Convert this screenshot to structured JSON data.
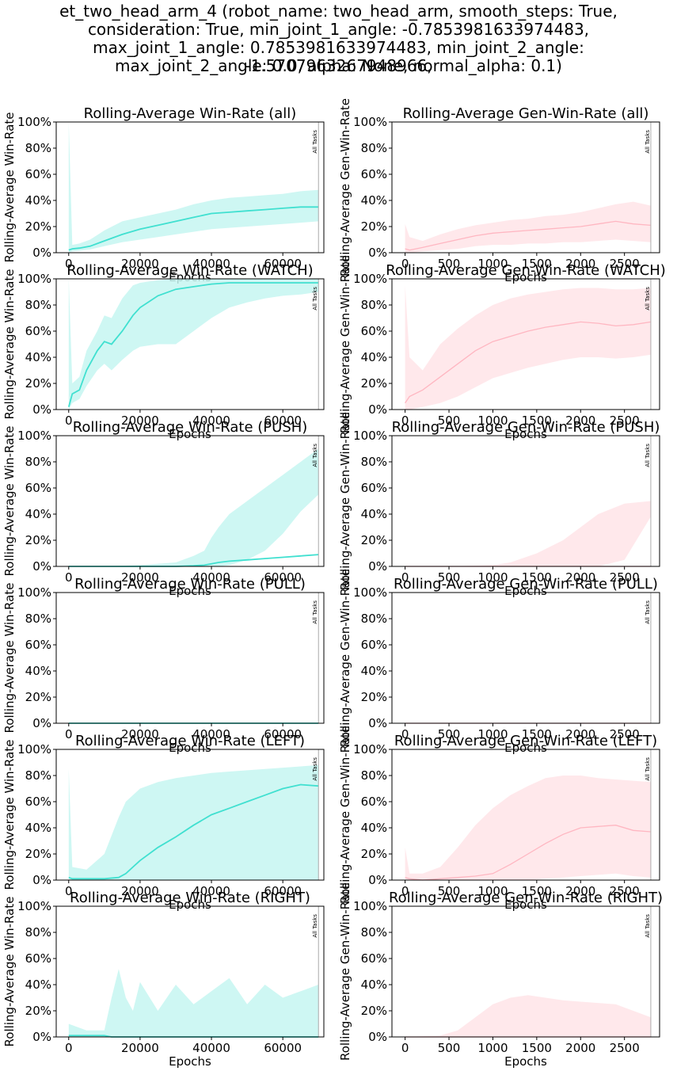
{
  "figure": {
    "suptitle_lines": [
      "et_two_head_arm_4 (robot_name: two_head_arm, smooth_steps: True,",
      "consideration: True, min_joint_1_angle: -0.7853981633974483,",
      "max_joint_1_angle: 0.7853981633974483, min_joint_2_angle: -1.5707963267948966,",
      "max_joint_2_angle: 0.0, alpha: None, normal_alpha: 0.1)"
    ],
    "colors": {
      "win": "#40e0d0",
      "win_band": "#c6f6f1",
      "gen": "#ffb6c1",
      "gen_band": "#ffe4e8",
      "marker": "#aaaaaa"
    }
  },
  "chart_data": [
    {
      "type": "line",
      "title": "Rolling-Average Win-Rate (all)",
      "xlabel": "Epochs",
      "ylabel": "Rolling-Average Win-Rate",
      "xlim": [
        -3500,
        71500
      ],
      "ylim": [
        0,
        1
      ],
      "xticks": [
        0,
        20000,
        40000,
        60000
      ],
      "yticks": [
        0,
        0.2,
        0.4,
        0.6,
        0.8,
        1.0
      ],
      "marker": {
        "x": 70000,
        "label": "All Tasks"
      },
      "color": "win",
      "x": [
        0,
        1000,
        3000,
        6000,
        10000,
        15000,
        20000,
        25000,
        30000,
        35000,
        40000,
        45000,
        50000,
        55000,
        60000,
        65000,
        70000
      ],
      "mean": [
        0.02,
        0.03,
        0.035,
        0.05,
        0.09,
        0.14,
        0.18,
        0.21,
        0.24,
        0.27,
        0.3,
        0.31,
        0.32,
        0.33,
        0.34,
        0.35,
        0.35
      ],
      "low": [
        0,
        0.01,
        0.015,
        0.025,
        0.05,
        0.08,
        0.1,
        0.12,
        0.14,
        0.16,
        0.18,
        0.19,
        0.2,
        0.21,
        0.22,
        0.23,
        0.24
      ],
      "high": [
        1.0,
        0.06,
        0.07,
        0.1,
        0.17,
        0.24,
        0.27,
        0.3,
        0.33,
        0.37,
        0.4,
        0.42,
        0.43,
        0.44,
        0.45,
        0.47,
        0.48
      ]
    },
    {
      "type": "line",
      "title": "Rolling-Average Gen-Win-Rate (all)",
      "xlabel": "Epochs",
      "ylabel": "Rolling-Average Gen-Win-Rate",
      "xlim": [
        -150,
        2900
      ],
      "ylim": [
        0,
        1
      ],
      "xticks": [
        0,
        500,
        1000,
        1500,
        2000,
        2500
      ],
      "yticks": [
        0,
        0.2,
        0.4,
        0.6,
        0.8,
        1.0
      ],
      "marker": {
        "x": 2800,
        "label": "All Tasks"
      },
      "color": "gen",
      "x": [
        0,
        50,
        200,
        400,
        600,
        800,
        1000,
        1200,
        1400,
        1600,
        1800,
        2000,
        2200,
        2400,
        2600,
        2800
      ],
      "mean": [
        0.03,
        0.02,
        0.04,
        0.07,
        0.1,
        0.13,
        0.15,
        0.16,
        0.17,
        0.18,
        0.19,
        0.2,
        0.22,
        0.24,
        0.22,
        0.21
      ],
      "low": [
        0,
        0,
        0.01,
        0.02,
        0.03,
        0.05,
        0.06,
        0.06,
        0.07,
        0.07,
        0.08,
        0.08,
        0.09,
        0.1,
        0.09,
        0.08
      ],
      "high": [
        0.22,
        0.12,
        0.09,
        0.14,
        0.18,
        0.21,
        0.23,
        0.25,
        0.26,
        0.28,
        0.29,
        0.31,
        0.34,
        0.37,
        0.39,
        0.36
      ]
    },
    {
      "type": "line",
      "title": "Rolling-Average Win-Rate (WATCH)",
      "xlabel": "Epochs",
      "ylabel": "Rolling-Average Win-Rate",
      "xlim": [
        -3500,
        71500
      ],
      "ylim": [
        0,
        1
      ],
      "xticks": [
        0,
        20000,
        40000,
        60000
      ],
      "yticks": [
        0,
        0.2,
        0.4,
        0.6,
        0.8,
        1.0
      ],
      "marker": {
        "x": 70000,
        "label": "All Tasks"
      },
      "color": "win",
      "x": [
        0,
        1000,
        3000,
        5000,
        8000,
        10000,
        12000,
        15000,
        18000,
        20000,
        25000,
        30000,
        35000,
        40000,
        45000,
        50000,
        55000,
        60000,
        65000,
        70000
      ],
      "mean": [
        0.02,
        0.12,
        0.15,
        0.3,
        0.45,
        0.52,
        0.5,
        0.6,
        0.72,
        0.78,
        0.87,
        0.92,
        0.94,
        0.96,
        0.97,
        0.97,
        0.97,
        0.97,
        0.97,
        0.97
      ],
      "low": [
        0,
        0.05,
        0.08,
        0.18,
        0.3,
        0.35,
        0.3,
        0.38,
        0.45,
        0.48,
        0.5,
        0.5,
        0.6,
        0.7,
        0.78,
        0.82,
        0.85,
        0.87,
        0.88,
        0.9
      ],
      "high": [
        1.0,
        0.2,
        0.25,
        0.45,
        0.6,
        0.72,
        0.7,
        0.85,
        0.95,
        0.97,
        0.99,
        1.0,
        1.0,
        1.0,
        1.0,
        1.0,
        1.0,
        1.0,
        1.0,
        1.0
      ]
    },
    {
      "type": "line",
      "title": "Rolling-Average Gen-Win-Rate (WATCH)",
      "xlabel": "Epochs",
      "ylabel": "Rolling-Average Gen-Win-Rate",
      "xlim": [
        -150,
        2900
      ],
      "ylim": [
        0,
        1
      ],
      "xticks": [
        0,
        500,
        1000,
        1500,
        2000,
        2500
      ],
      "yticks": [
        0,
        0.2,
        0.4,
        0.6,
        0.8,
        1.0
      ],
      "marker": {
        "x": 2800,
        "label": "All Tasks"
      },
      "color": "gen",
      "x": [
        0,
        50,
        200,
        400,
        600,
        800,
        1000,
        1200,
        1400,
        1600,
        1800,
        2000,
        2200,
        2400,
        2600,
        2800
      ],
      "mean": [
        0.05,
        0.1,
        0.15,
        0.25,
        0.35,
        0.45,
        0.52,
        0.56,
        0.6,
        0.63,
        0.65,
        0.67,
        0.66,
        0.64,
        0.65,
        0.67
      ],
      "low": [
        0,
        0,
        0.02,
        0.05,
        0.1,
        0.17,
        0.24,
        0.28,
        0.32,
        0.35,
        0.38,
        0.4,
        0.4,
        0.39,
        0.4,
        0.42
      ],
      "high": [
        0.95,
        0.4,
        0.3,
        0.5,
        0.62,
        0.72,
        0.8,
        0.85,
        0.88,
        0.9,
        0.92,
        0.93,
        0.93,
        0.92,
        0.92,
        0.93
      ]
    },
    {
      "type": "line",
      "title": "Rolling-Average Win-Rate (PUSH)",
      "xlabel": "Epochs",
      "ylabel": "Rolling-Average Win-Rate",
      "xlim": [
        -3500,
        71500
      ],
      "ylim": [
        0,
        1
      ],
      "xticks": [
        0,
        20000,
        40000,
        60000
      ],
      "yticks": [
        0,
        0.2,
        0.4,
        0.6,
        0.8,
        1.0
      ],
      "marker": {
        "x": 70000,
        "label": "All Tasks"
      },
      "color": "win",
      "x": [
        0,
        10000,
        20000,
        30000,
        35000,
        38000,
        40000,
        42000,
        45000,
        50000,
        55000,
        60000,
        65000,
        70000
      ],
      "mean": [
        0,
        0,
        0,
        0,
        0.005,
        0.01,
        0.02,
        0.03,
        0.04,
        0.05,
        0.06,
        0.07,
        0.08,
        0.09
      ],
      "low": [
        0,
        0,
        0,
        0,
        0,
        0,
        0,
        0,
        0.01,
        0.05,
        0.12,
        0.25,
        0.42,
        0.55
      ],
      "high": [
        0,
        0,
        0.01,
        0.03,
        0.08,
        0.12,
        0.22,
        0.3,
        0.4,
        0.5,
        0.6,
        0.7,
        0.8,
        0.9
      ]
    },
    {
      "type": "line",
      "title": "Rolling-Average Gen-Win-Rate (PUSH)",
      "xlabel": "Epochs",
      "ylabel": "Rolling-Average Gen-Win-Rate",
      "xlim": [
        -150,
        2900
      ],
      "ylim": [
        0,
        1
      ],
      "xticks": [
        0,
        500,
        1000,
        1500,
        2000,
        2500
      ],
      "yticks": [
        0,
        0.2,
        0.4,
        0.6,
        0.8,
        1.0
      ],
      "marker": {
        "x": 2800,
        "label": "All Tasks"
      },
      "color": "gen",
      "x": [
        0,
        500,
        1000,
        1200,
        1500,
        1800,
        2000,
        2200,
        2500,
        2800
      ],
      "mean": [
        0,
        0,
        0,
        0,
        0,
        0,
        0,
        0,
        0,
        0
      ],
      "low": [
        0,
        0,
        0,
        0,
        0,
        0,
        0,
        0,
        0.05,
        0.38
      ],
      "high": [
        0,
        0,
        0.01,
        0.03,
        0.1,
        0.2,
        0.3,
        0.4,
        0.48,
        0.5
      ]
    },
    {
      "type": "line",
      "title": "Rolling-Average Win-Rate (PULL)",
      "xlabel": "Epochs",
      "ylabel": "Rolling-Average Win-Rate",
      "xlim": [
        -3500,
        71500
      ],
      "ylim": [
        0,
        1
      ],
      "xticks": [
        0,
        20000,
        40000,
        60000
      ],
      "yticks": [
        0,
        0.2,
        0.4,
        0.6,
        0.8,
        1.0
      ],
      "marker": {
        "x": 70000,
        "label": "All Tasks"
      },
      "color": "win",
      "x": [
        0,
        70000
      ],
      "mean": [
        0,
        0
      ],
      "low": [
        0,
        0
      ],
      "high": [
        0,
        0
      ]
    },
    {
      "type": "line",
      "title": "Rolling-Average Gen-Win-Rate (PULL)",
      "xlabel": "Epochs",
      "ylabel": "Rolling-Average Gen-Win-Rate",
      "xlim": [
        -150,
        2900
      ],
      "ylim": [
        0,
        1
      ],
      "xticks": [
        0,
        500,
        1000,
        1500,
        2000,
        2500
      ],
      "yticks": [
        0,
        0.2,
        0.4,
        0.6,
        0.8,
        1.0
      ],
      "marker": {
        "x": 2800,
        "label": "All Tasks"
      },
      "color": "gen",
      "x": [
        0,
        2800
      ],
      "mean": [
        0,
        0
      ],
      "low": [
        0,
        0
      ],
      "high": [
        0,
        0
      ]
    },
    {
      "type": "line",
      "title": "Rolling-Average Win-Rate (LEFT)",
      "xlabel": "Epochs",
      "ylabel": "Rolling-Average Win-Rate",
      "xlim": [
        -3500,
        71500
      ],
      "ylim": [
        0,
        1
      ],
      "xticks": [
        0,
        20000,
        40000,
        60000
      ],
      "yticks": [
        0,
        0.2,
        0.4,
        0.6,
        0.8,
        1.0
      ],
      "marker": {
        "x": 70000,
        "label": "All Tasks"
      },
      "color": "win",
      "x": [
        0,
        1000,
        5000,
        10000,
        14000,
        16000,
        18000,
        20000,
        25000,
        30000,
        35000,
        40000,
        45000,
        50000,
        55000,
        60000,
        65000,
        70000
      ],
      "mean": [
        0.02,
        0.01,
        0.01,
        0.01,
        0.02,
        0.05,
        0.1,
        0.15,
        0.25,
        0.33,
        0.42,
        0.5,
        0.55,
        0.6,
        0.65,
        0.7,
        0.73,
        0.72
      ],
      "low": [
        0,
        0,
        0,
        0,
        0,
        0,
        0,
        0,
        0,
        0,
        0,
        0,
        0,
        0,
        0,
        0,
        0,
        0
      ],
      "high": [
        0.85,
        0.1,
        0.08,
        0.2,
        0.48,
        0.6,
        0.65,
        0.7,
        0.75,
        0.78,
        0.8,
        0.82,
        0.83,
        0.84,
        0.85,
        0.86,
        0.87,
        0.88
      ]
    },
    {
      "type": "line",
      "title": "Rolling-Average Gen-Win-Rate (LEFT)",
      "xlabel": "Epochs",
      "ylabel": "Rolling-Average Gen-Win-Rate",
      "xlim": [
        -150,
        2900
      ],
      "ylim": [
        0,
        1
      ],
      "xticks": [
        0,
        500,
        1000,
        1500,
        2000,
        2500
      ],
      "yticks": [
        0,
        0.2,
        0.4,
        0.6,
        0.8,
        1.0
      ],
      "marker": {
        "x": 2800,
        "label": "All Tasks"
      },
      "color": "gen",
      "x": [
        0,
        50,
        200,
        400,
        600,
        800,
        1000,
        1200,
        1400,
        1600,
        1800,
        2000,
        2200,
        2400,
        2600,
        2800
      ],
      "mean": [
        0.02,
        0.01,
        0,
        0.01,
        0.02,
        0.03,
        0.05,
        0.12,
        0.2,
        0.28,
        0.35,
        0.4,
        0.41,
        0.42,
        0.38,
        0.37
      ],
      "low": [
        0,
        0,
        0,
        0,
        0,
        0,
        0,
        0,
        0,
        0.01,
        0.02,
        0.03,
        0.04,
        0.05,
        0.03,
        0.02
      ],
      "high": [
        0.25,
        0.05,
        0.05,
        0.1,
        0.25,
        0.42,
        0.55,
        0.65,
        0.72,
        0.78,
        0.8,
        0.8,
        0.78,
        0.77,
        0.76,
        0.75
      ]
    },
    {
      "type": "line",
      "title": "Rolling-Average Win-Rate (RIGHT)",
      "xlabel": "Epochs",
      "ylabel": "Rolling-Average Win-Rate",
      "xlim": [
        -3500,
        71500
      ],
      "ylim": [
        0,
        1
      ],
      "xticks": [
        0,
        20000,
        40000,
        60000
      ],
      "yticks": [
        0,
        0.2,
        0.4,
        0.6,
        0.8,
        1.0
      ],
      "marker": {
        "x": 70000,
        "label": "All Tasks"
      },
      "color": "win",
      "x": [
        0,
        5000,
        10000,
        12000,
        14000,
        16000,
        18000,
        20000,
        25000,
        30000,
        35000,
        40000,
        45000,
        50000,
        55000,
        60000,
        65000,
        70000
      ],
      "mean": [
        0.01,
        0.01,
        0.01,
        0,
        0,
        0,
        0,
        0,
        0,
        0,
        0,
        0,
        0,
        0,
        0,
        0,
        0,
        0
      ],
      "low": [
        0,
        0,
        0,
        0,
        0,
        0,
        0,
        0,
        0,
        0,
        0,
        0,
        0,
        0,
        0,
        0,
        0,
        0
      ],
      "high": [
        0.1,
        0.05,
        0.05,
        0.3,
        0.52,
        0.3,
        0.2,
        0.42,
        0.2,
        0.4,
        0.25,
        0.35,
        0.45,
        0.25,
        0.4,
        0.3,
        0.35,
        0.4
      ]
    },
    {
      "type": "line",
      "title": "Rolling-Average Gen-Win-Rate (RIGHT)",
      "xlabel": "Epochs",
      "ylabel": "Rolling-Average Gen-Win-Rate",
      "xlim": [
        -150,
        2900
      ],
      "ylim": [
        0,
        1
      ],
      "xticks": [
        0,
        500,
        1000,
        1500,
        2000,
        2500
      ],
      "yticks": [
        0,
        0.2,
        0.4,
        0.6,
        0.8,
        1.0
      ],
      "marker": {
        "x": 2800,
        "label": "All Tasks"
      },
      "color": "gen",
      "x": [
        0,
        400,
        600,
        800,
        1000,
        1200,
        1400,
        1600,
        1800,
        2000,
        2200,
        2400,
        2600,
        2800
      ],
      "mean": [
        0,
        0,
        0,
        0,
        0,
        0,
        0,
        0,
        0,
        0,
        0,
        0,
        0,
        0
      ],
      "low": [
        0,
        0,
        0,
        0,
        0,
        0,
        0,
        0,
        0,
        0,
        0,
        0,
        0,
        0
      ],
      "high": [
        0,
        0.01,
        0.05,
        0.15,
        0.25,
        0.3,
        0.32,
        0.3,
        0.28,
        0.27,
        0.26,
        0.25,
        0.2,
        0.15
      ]
    }
  ]
}
